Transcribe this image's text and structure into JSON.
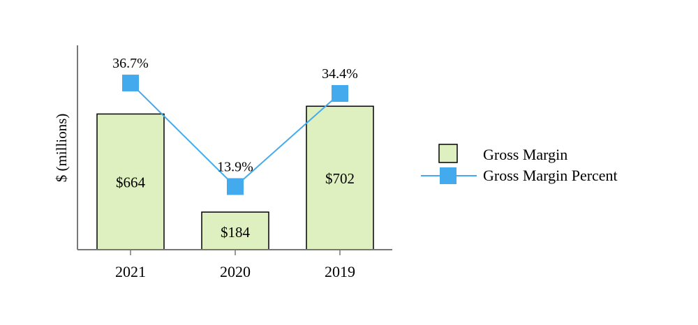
{
  "chart_data": {
    "type": "bar",
    "categories": [
      "2021",
      "2020",
      "2019"
    ],
    "ylabel": "$ (millions)",
    "series": [
      {
        "name": "Gross Margin",
        "kind": "bar",
        "values": [
          664,
          184,
          702
        ],
        "value_labels": [
          "$664",
          "$184",
          "$702"
        ],
        "color": "#dff0c0"
      },
      {
        "name": "Gross Margin Percent",
        "kind": "line",
        "values": [
          36.7,
          13.9,
          34.4
        ],
        "value_labels": [
          "36.7%",
          "13.9%",
          "34.4%"
        ],
        "color": "#44aaee"
      }
    ],
    "ylim": [
      0,
      1000
    ],
    "y2lim": [
      0,
      45
    ],
    "legend_position": "right",
    "grid": false
  }
}
